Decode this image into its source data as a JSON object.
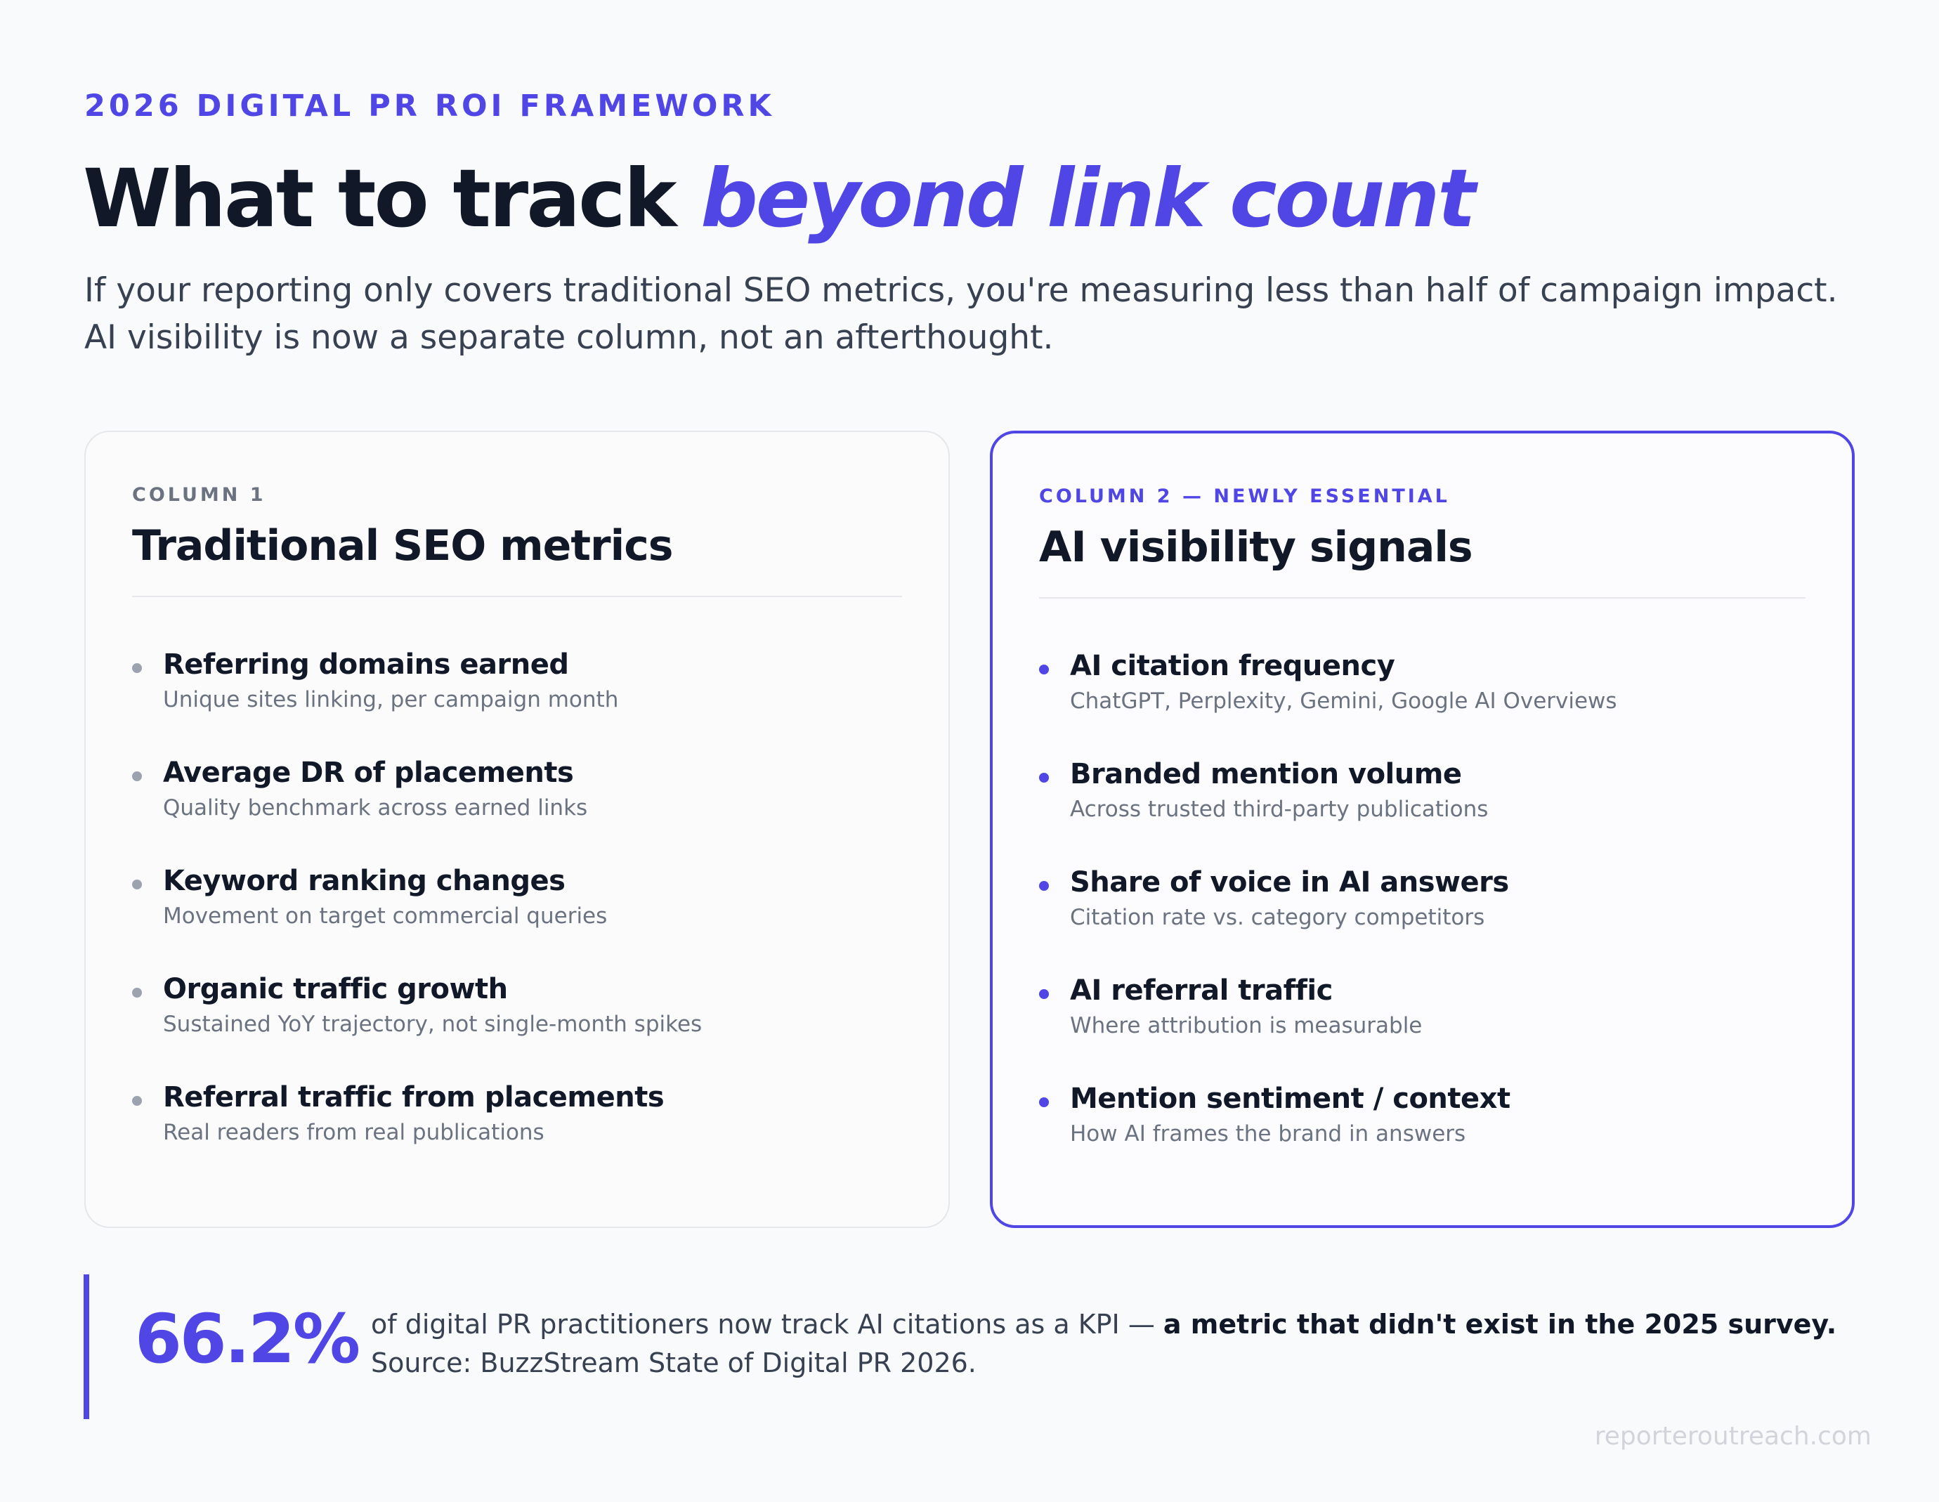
{
  "header": {
    "eyebrow": "2026 DIGITAL PR ROI FRAMEWORK",
    "title_main": "What to track ",
    "title_accent": "beyond link count",
    "subtitle_line1": "If your reporting only covers traditional SEO metrics, you're measuring less than half of campaign impact.",
    "subtitle_line2": "AI visibility is now a separate column, not an afterthought."
  },
  "columns": [
    {
      "label": "COLUMN 1",
      "title": "Traditional SEO metrics",
      "items": [
        {
          "title": "Referring domains earned",
          "desc": "Unique sites linking, per campaign month"
        },
        {
          "title": "Average DR of placements",
          "desc": "Quality benchmark across earned links"
        },
        {
          "title": "Keyword ranking changes",
          "desc": "Movement on target commercial queries"
        },
        {
          "title": "Organic traffic growth",
          "desc": "Sustained YoY trajectory, not single-month spikes"
        },
        {
          "title": "Referral traffic from placements",
          "desc": "Real readers from real publications"
        }
      ]
    },
    {
      "label": "COLUMN 2 — NEWLY ESSENTIAL",
      "title": "AI visibility signals",
      "items": [
        {
          "title": "AI citation frequency",
          "desc": "ChatGPT, Perplexity, Gemini, Google AI Overviews"
        },
        {
          "title": "Branded mention volume",
          "desc": "Across trusted third-party publications"
        },
        {
          "title": "Share of voice in AI answers",
          "desc": "Citation rate vs. category competitors"
        },
        {
          "title": "AI referral traffic",
          "desc": "Where attribution is measurable"
        },
        {
          "title": "Mention sentiment / context",
          "desc": "How AI frames the brand in answers"
        }
      ]
    }
  ],
  "stat": {
    "value": "66.2%",
    "text_before": "of digital PR practitioners now track AI citations as a KPI — ",
    "text_bold": "a metric that didn't exist in the 2025 survey.",
    "text_after": " Source: BuzzStream State of Digital PR 2026."
  },
  "footer": {
    "site": "reporteroutreach.com"
  },
  "colors": {
    "accent": "#4f46e5",
    "heading": "#111827",
    "muted": "#6b7280",
    "background": "#f9fafb"
  }
}
